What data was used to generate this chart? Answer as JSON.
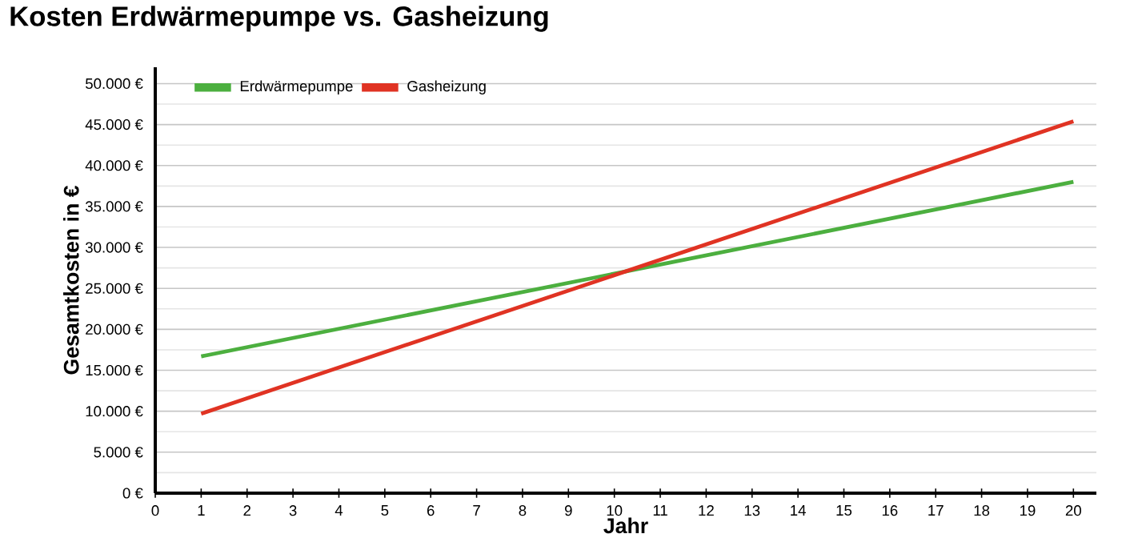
{
  "chart_data": {
    "type": "line",
    "title": "Kosten Erdwärmepumpe vs. Gasheizung",
    "xlabel": "Jahr",
    "ylabel": "Gesamtkosten in €",
    "x": [
      1,
      20
    ],
    "series": [
      {
        "name": "Erdwärmepumpe",
        "color": "#4caf3f",
        "values": [
          16700,
          38000
        ]
      },
      {
        "name": "Gasheizung",
        "color": "#e03323",
        "values": [
          9700,
          45400
        ]
      }
    ],
    "xlim": [
      0,
      20.5
    ],
    "xticks": [
      0,
      1,
      2,
      3,
      4,
      5,
      6,
      7,
      8,
      9,
      10,
      11,
      12,
      13,
      14,
      15,
      16,
      17,
      18,
      19,
      20
    ],
    "ylim": [
      0,
      52000
    ],
    "yticks": [
      {
        "value": 0,
        "label": "0 €"
      },
      {
        "value": 5000,
        "label": "5.000 €"
      },
      {
        "value": 10000,
        "label": "10.000 €"
      },
      {
        "value": 15000,
        "label": "15.000 €"
      },
      {
        "value": 20000,
        "label": "20.000 €"
      },
      {
        "value": 25000,
        "label": "25.000 €"
      },
      {
        "value": 30000,
        "label": "30.000 €"
      },
      {
        "value": 35000,
        "label": "35.000 €"
      },
      {
        "value": 40000,
        "label": "40.000 €"
      },
      {
        "value": 45000,
        "label": "45.000 €"
      },
      {
        "value": 50000,
        "label": "50.000 €"
      }
    ],
    "grid": "y",
    "legend": "top left",
    "marker": "none",
    "line_style": "solid"
  }
}
